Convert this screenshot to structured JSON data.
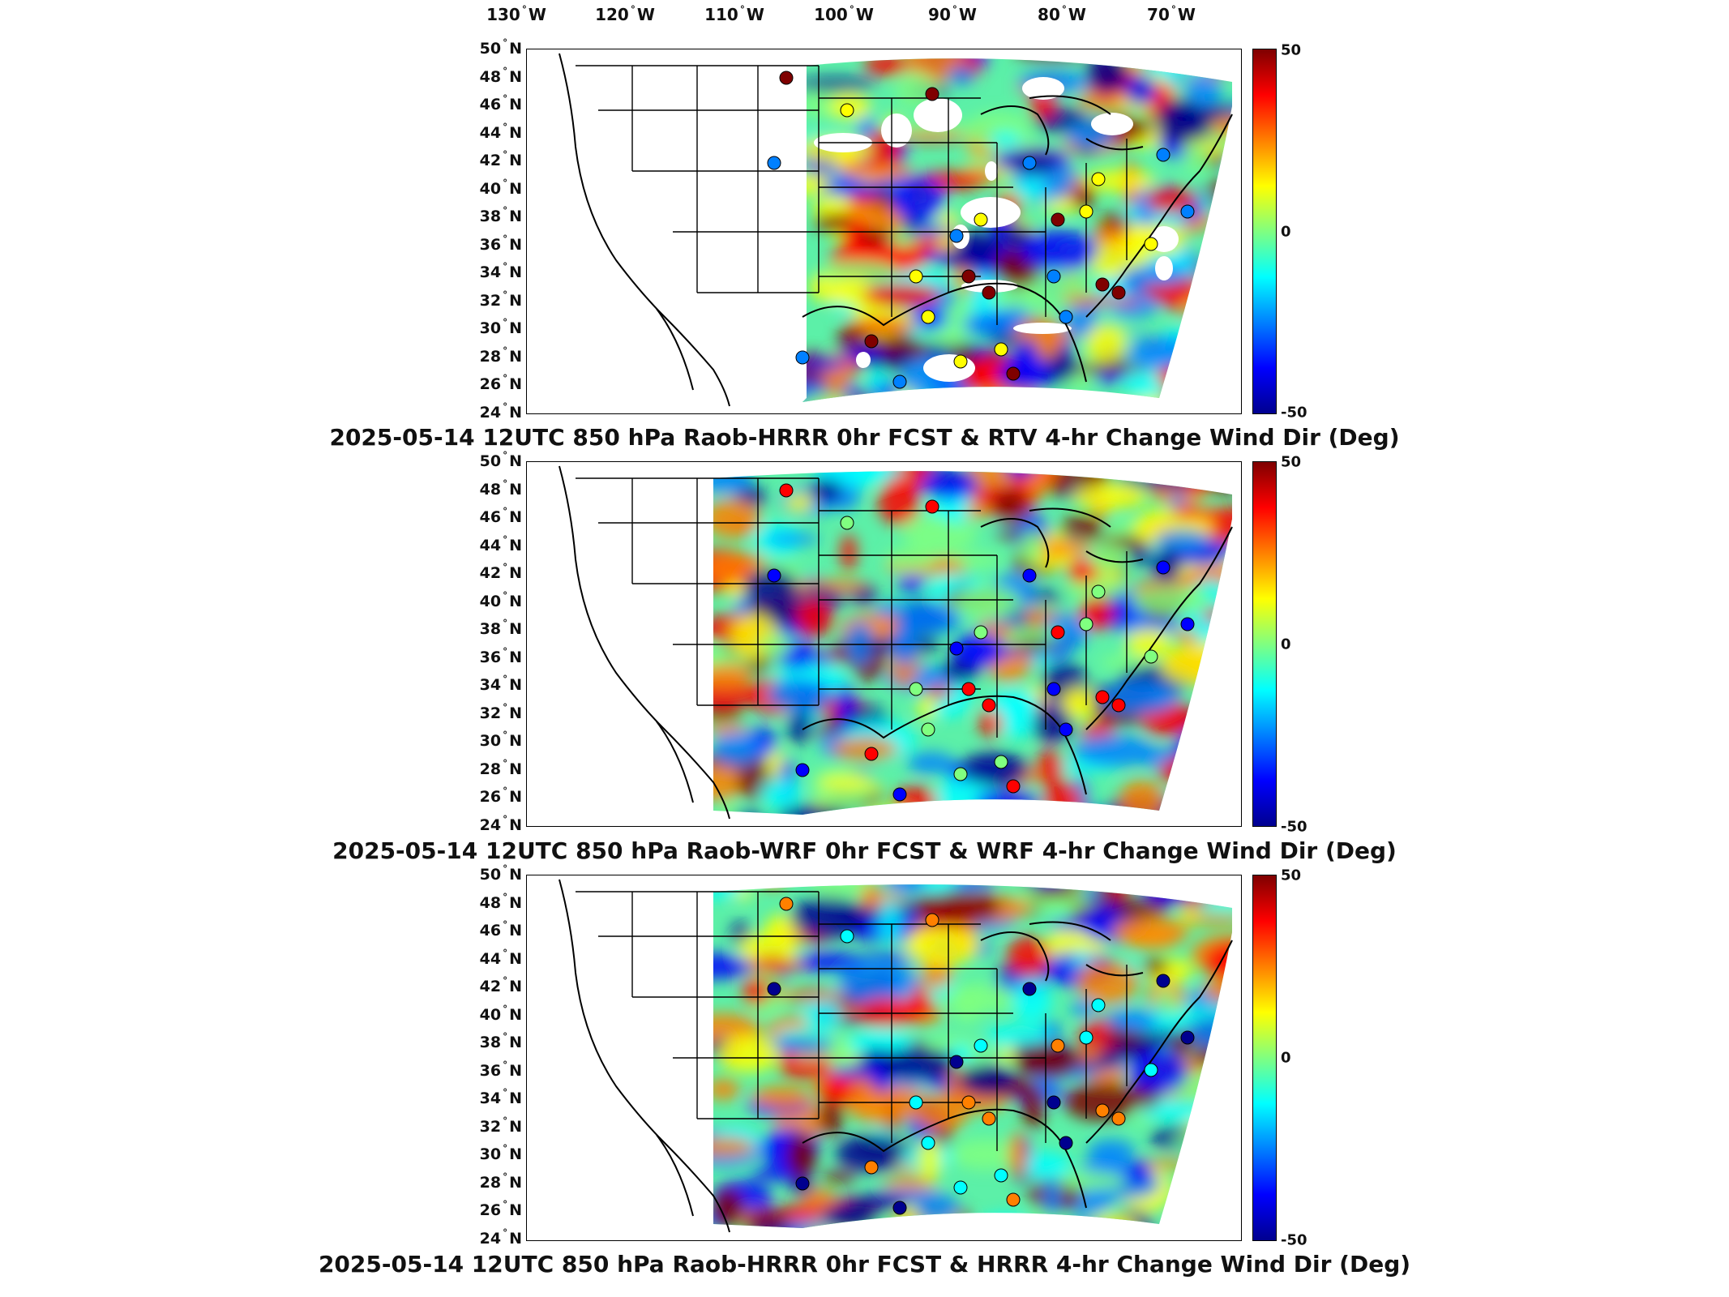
{
  "longitude_labels": [
    "130",
    "120",
    "110",
    "100",
    "90",
    "80",
    "70"
  ],
  "longitude_hemisphere": "W",
  "latitude_labels": [
    "50",
    "48",
    "46",
    "44",
    "42",
    "40",
    "38",
    "36",
    "34",
    "32",
    "30",
    "28",
    "26",
    "24"
  ],
  "latitude_hemisphere": "N",
  "degree_symbol": "°",
  "colorbar": {
    "max_label": "50",
    "zero_label": "0",
    "min_label": "-50",
    "colors": [
      "#7f0000",
      "#ff0000",
      "#ff8000",
      "#ffff00",
      "#80ff80",
      "#00ffff",
      "#0080ff",
      "#0000ff",
      "#00008f"
    ]
  },
  "panels": [
    {
      "caption": "2025-05-14 12UTC 850 hPa Raob-HRRR 0hr FCST & RTV 4-hr Change Wind Dir (Deg)"
    },
    {
      "caption": "2025-05-14 12UTC 850 hPa Raob-WRF 0hr FCST & WRF 4-hr Change Wind Dir (Deg)"
    },
    {
      "caption": "2025-05-14 12UTC 850 hPa Raob-HRRR 0hr FCST & HRRR 4-hr Change Wind Dir (Deg)"
    }
  ]
}
